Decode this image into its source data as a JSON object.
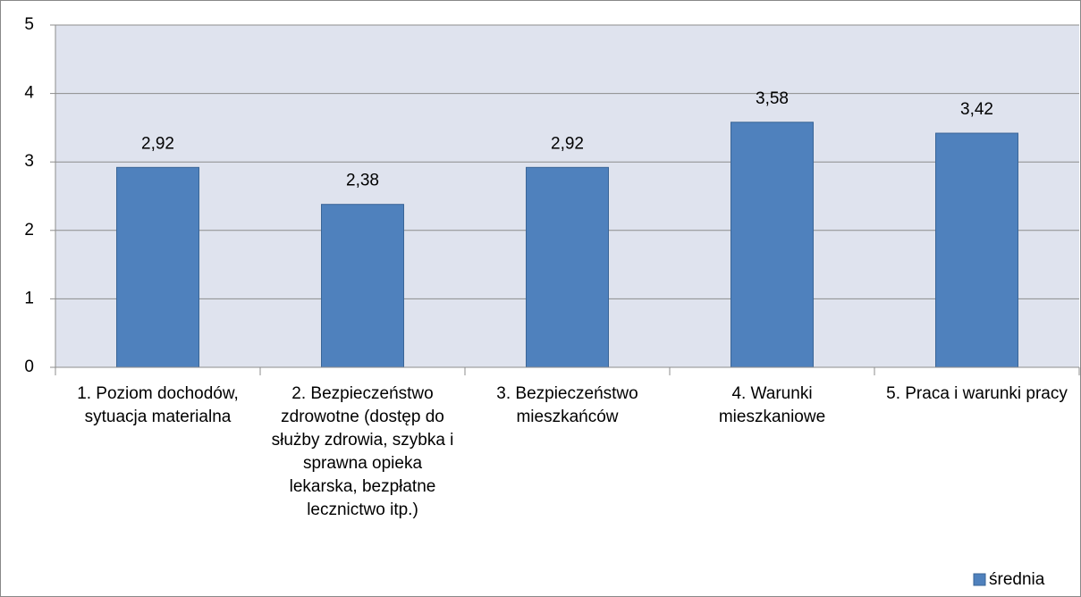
{
  "chart_data": {
    "type": "bar",
    "categories": [
      "1. Poziom dochodów, sytuacja materialna",
      "2. Bezpieczeństwo zdrowotne (dostęp do służby zdrowia, szybka i sprawna opieka lekarska, bezpłatne lecznictwo itp.)",
      "3. Bezpieczeństwo mieszkańców",
      "4. Warunki mieszkaniowe",
      "5. Praca i warunki pracy"
    ],
    "series": [
      {
        "name": "średnia",
        "color": "#4f81bd",
        "values": [
          2.92,
          2.38,
          2.92,
          3.58,
          3.42
        ],
        "value_labels": [
          "2,92",
          "2,38",
          "2,92",
          "3,58",
          "3,42"
        ]
      }
    ],
    "ylim": [
      0,
      5
    ],
    "yticks": [
      0,
      1,
      2,
      3,
      4,
      5
    ],
    "grid": true,
    "legend": "bottom-right"
  }
}
